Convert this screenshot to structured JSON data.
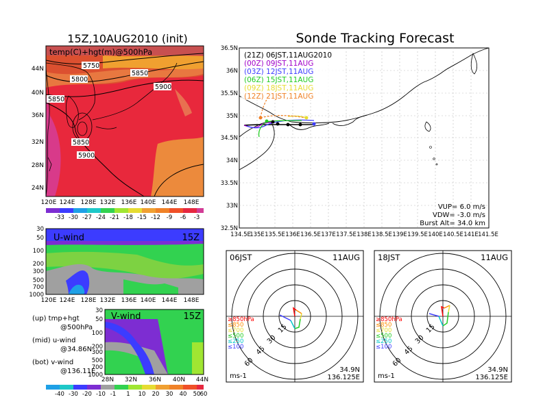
{
  "main_title": "Sonde Tracking Forecast",
  "map500": {
    "title": "15Z,10AUG2010 (init)",
    "var_label": "temp(C)+hgt(m)@500hPa",
    "lon_ticks": [
      "120E",
      "124E",
      "128E",
      "132E",
      "136E",
      "140E",
      "144E",
      "148E"
    ],
    "lat_ticks": [
      "44N",
      "40N",
      "36N",
      "32N",
      "28N",
      "24N"
    ],
    "contours": [
      "5750",
      "5800",
      "5850",
      "5850",
      "5900",
      "5850",
      "5900"
    ],
    "colorbar": [
      "-33",
      "-30",
      "-27",
      "-24",
      "-21",
      "-18",
      "-15",
      "-12",
      "-9",
      "-6",
      "-3"
    ]
  },
  "uwind": {
    "label": "U-wind",
    "time": "15Z",
    "p_ticks": [
      "30",
      "50",
      "100",
      "200",
      "300",
      "500",
      "700",
      "1000"
    ],
    "lon_ticks": [
      "120E",
      "124E",
      "128E",
      "132E",
      "136E",
      "140E",
      "144E",
      "148E"
    ]
  },
  "vwind": {
    "label": "V-wind",
    "time": "15Z",
    "p_ticks": [
      "30",
      "50",
      "100",
      "200",
      "300",
      "500",
      "700",
      "1000"
    ],
    "lat_ticks": [
      "28N",
      "32N",
      "36N",
      "40N",
      "44N"
    ],
    "colorbar": [
      "-40",
      "-30",
      "-20",
      "-10",
      "-1",
      "1",
      "10",
      "20",
      "30",
      "40",
      "50",
      "60"
    ]
  },
  "legend": {
    "up": "(up) tmp+hgt",
    "up2": "@500hPa",
    "mid": "(mid) u-wind",
    "mid2": "@34.86N",
    "bot": "(bot) v-wind",
    "bot2": "@136.11E"
  },
  "track": {
    "lat_ticks": [
      "36.5N",
      "36N",
      "35.5N",
      "35N",
      "34.5N",
      "34N",
      "33.5N",
      "33N",
      "32.5N"
    ],
    "lon_ticks": [
      "134.5E",
      "135E",
      "135.5E",
      "136E",
      "136.5E",
      "137E",
      "137.5E",
      "138E",
      "138.5E",
      "139E",
      "139.5E",
      "140E",
      "140.5E",
      "141E",
      "141.5E"
    ],
    "launches": [
      {
        "text": "(21Z)  06JST,11AUG2010",
        "color": "#000000"
      },
      {
        "text": "(00Z)  09JST,11AUG",
        "color": "#a000c8"
      },
      {
        "text": "(03Z)  12JST,11AUG",
        "color": "#3c3cff"
      },
      {
        "text": "(06Z)  15JST,11AUG",
        "color": "#22cc22"
      },
      {
        "text": "(09Z)  18JST,11AUG",
        "color": "#e6dc32"
      },
      {
        "text": "(12Z)  21JST,11AUG",
        "color": "#f08228"
      }
    ],
    "vup": "VUP=  6.0  m/s",
    "vdw": "VDW=  -3.0  m/s",
    "burst": "Burst Alt=  34.0  km"
  },
  "hodo1": {
    "time": "06JST",
    "date": "11AUG",
    "unit": "ms-1",
    "lat": "34.9N",
    "lon": "136.125E",
    "rings": [
      "15",
      "30",
      "45",
      "60"
    ],
    "levels": [
      {
        "text": "≥850hPa",
        "color": "#ff0000"
      },
      {
        "text": "≤850",
        "color": "#ff8c00"
      },
      {
        "text": "≤700",
        "color": "#e6dc32"
      },
      {
        "text": "≤500",
        "color": "#22cc22"
      },
      {
        "text": "≤250",
        "color": "#00c8c8"
      },
      {
        "text": "≤100",
        "color": "#3c3cff"
      }
    ]
  },
  "hodo2": {
    "time": "18JST",
    "date": "11AUG",
    "unit": "ms-1",
    "lat": "34.9N",
    "lon": "136.125E",
    "rings": [
      "15",
      "30",
      "45",
      "60"
    ],
    "levels": [
      {
        "text": "≥850hPa",
        "color": "#ff0000"
      },
      {
        "text": "≤850",
        "color": "#ff8c00"
      },
      {
        "text": "≤700",
        "color": "#e6dc32"
      },
      {
        "text": "≤500",
        "color": "#22cc22"
      },
      {
        "text": "≤250",
        "color": "#00c8c8"
      },
      {
        "text": "≤100",
        "color": "#3c3cff"
      }
    ]
  }
}
